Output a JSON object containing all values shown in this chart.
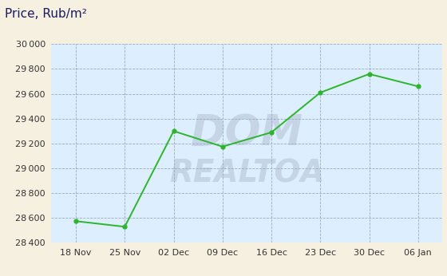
{
  "x_labels": [
    "18 Nov",
    "25 Nov",
    "02 Dec",
    "09 Dec",
    "16 Dec",
    "23 Dec",
    "30 Dec",
    "06 Jan"
  ],
  "y_values": [
    28575,
    28530,
    29300,
    29175,
    29290,
    29610,
    29760,
    29660
  ],
  "line_color": "#2db52d",
  "marker_color": "#2db52d",
  "title": "Price, Rub/m²",
  "title_color": "#1a1a5e",
  "bg_color": "#ddeeff",
  "outer_bg": "#f5f0e0",
  "ylim": [
    28400,
    30000
  ],
  "yticks": [
    28400,
    28600,
    28800,
    29000,
    29200,
    29400,
    29600,
    29800,
    30000
  ],
  "grid_color": "#99aacc",
  "watermark_color": "#c5d5e5"
}
